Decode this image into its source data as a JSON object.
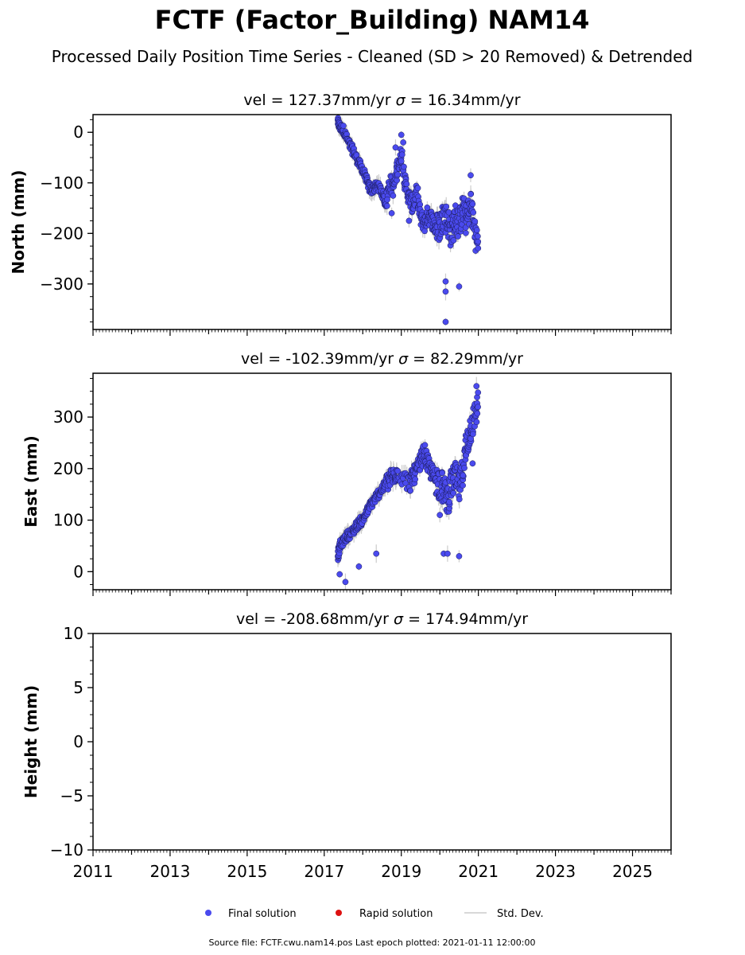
{
  "title": "FCTF (Factor_Building) NAM14",
  "subtitle": "Processed Daily Position Time Series - Cleaned (SD > 20 Removed) & Detrended",
  "footer": "Source file: FCTF.cwu.nam14.pos  Last epoch plotted: 2021-01-11 12:00:00",
  "legend": {
    "final": "Final solution",
    "rapid": "Rapid solution",
    "std": "Std. Dev."
  },
  "colors": {
    "final": "#4a4aee",
    "rapid": "#dd1111",
    "std": "#cccccc"
  },
  "chart_data": [
    {
      "type": "scatter",
      "panel": "north",
      "title_vel": "vel = 127.37mm/yr",
      "title_sigma": "= 16.34mm/yr",
      "ylabel": "North (mm)",
      "ylim": [
        -390,
        35
      ],
      "yticks": [
        0,
        -100,
        -200,
        -300
      ],
      "ytick_labels": [
        "0",
        "−100",
        "−200",
        "−300"
      ],
      "xlim": [
        2011,
        2026
      ],
      "series": [
        {
          "x": [
            2017.35,
            2017.4,
            2017.5,
            2017.6,
            2017.7,
            2017.8,
            2017.9,
            2018.0,
            2018.1,
            2018.2,
            2018.3,
            2018.4,
            2018.5,
            2018.6,
            2018.7,
            2018.8,
            2018.9,
            2019.0,
            2019.1,
            2019.2,
            2019.3,
            2019.4,
            2019.5,
            2019.6,
            2019.7,
            2019.8,
            2019.9,
            2020.0,
            2020.1,
            2020.2,
            2020.3,
            2020.4,
            2020.5,
            2020.6,
            2020.7,
            2020.8,
            2020.9,
            2021.0
          ],
          "y": [
            20,
            10,
            5,
            -15,
            -30,
            -45,
            -60,
            -75,
            -95,
            -115,
            -110,
            -105,
            -120,
            -140,
            -100,
            -110,
            -70,
            -40,
            -100,
            -130,
            -145,
            -120,
            -170,
            -180,
            -160,
            -175,
            -190,
            -185,
            -160,
            -175,
            -200,
            -170,
            -180,
            -150,
            -175,
            -140,
            -190,
            -230
          ]
        }
      ],
      "extremes": {
        "x": [
          2018.85,
          2019.05,
          2019.0,
          2020.15,
          2020.15,
          2020.15,
          2020.8,
          2020.5,
          2019.2,
          2018.75
        ],
        "y": [
          -30,
          -20,
          -5,
          -295,
          -315,
          -375,
          -85,
          -305,
          -175,
          -160
        ]
      }
    },
    {
      "type": "scatter",
      "panel": "east",
      "title_vel": "vel = -102.39mm/yr",
      "title_sigma": "= 82.29mm/yr",
      "ylabel": "East (mm)",
      "ylim": [
        -35,
        385
      ],
      "yticks": [
        0,
        100,
        200,
        300
      ],
      "ytick_labels": [
        "0",
        "100",
        "200",
        "300"
      ],
      "xlim": [
        2011,
        2026
      ],
      "series": [
        {
          "x": [
            2017.35,
            2017.4,
            2017.5,
            2017.6,
            2017.7,
            2017.8,
            2017.9,
            2018.0,
            2018.1,
            2018.2,
            2018.3,
            2018.4,
            2018.5,
            2018.6,
            2018.7,
            2018.8,
            2018.9,
            2019.2,
            2019.3,
            2019.4,
            2019.5,
            2019.6,
            2019.7,
            2019.8,
            2019.9,
            2020.0,
            2020.1,
            2020.2,
            2020.3,
            2020.4,
            2020.5,
            2020.6,
            2020.7,
            2020.8,
            2020.9,
            2021.0
          ],
          "y": [
            30,
            50,
            60,
            70,
            75,
            85,
            95,
            100,
            115,
            130,
            140,
            150,
            160,
            170,
            180,
            185,
            195,
            170,
            185,
            195,
            215,
            230,
            205,
            190,
            180,
            170,
            160,
            140,
            170,
            185,
            160,
            200,
            250,
            280,
            300,
            330
          ]
        }
      ],
      "extremes": {
        "x": [
          2017.4,
          2017.55,
          2017.9,
          2018.35,
          2020.1,
          2020.2,
          2020.5,
          2020.95,
          2020.85,
          2020.0
        ],
        "y": [
          -5,
          -20,
          10,
          35,
          35,
          35,
          30,
          360,
          210,
          110
        ]
      }
    },
    {
      "type": "scatter",
      "panel": "height",
      "title_vel": "vel = -208.68mm/yr",
      "title_sigma": "= 174.94mm/yr",
      "ylabel": "Height (mm)",
      "ylim": [
        -10,
        10
      ],
      "yticks": [
        10,
        5,
        0,
        -5,
        -10
      ],
      "ytick_labels": [
        "10",
        "5",
        "0",
        "−5",
        "−10"
      ],
      "xlim": [
        2011,
        2026
      ],
      "xticks": [
        2011,
        2013,
        2015,
        2017,
        2019,
        2021,
        2023,
        2025
      ],
      "xtick_labels": [
        "2011",
        "2013",
        "2015",
        "2017",
        "2019",
        "2021",
        "2023",
        "2025"
      ],
      "series": []
    }
  ]
}
